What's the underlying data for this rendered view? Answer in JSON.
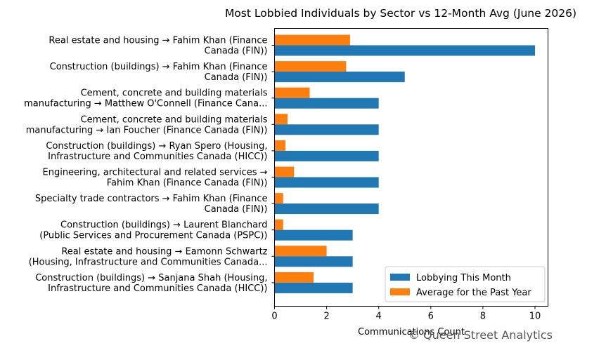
{
  "chart_data": {
    "type": "bar",
    "orientation": "horizontal",
    "title": "Most Lobbied Individuals by Sector vs 12-Month Avg (June 2026)",
    "xlabel": "Communications Count",
    "ylabel": "",
    "xlim": [
      0,
      10.5
    ],
    "xticks": [
      0,
      2,
      4,
      6,
      8,
      10
    ],
    "grid": false,
    "legend_position": "lower-right",
    "categories": [
      [
        "Real estate and housing → Fahim Khan (Finance",
        "Canada (FIN))"
      ],
      [
        "Construction (buildings) → Fahim Khan (Finance",
        "Canada (FIN))"
      ],
      [
        "Cement, concrete and building materials",
        "manufacturing → Matthew O'Connell (Finance Cana..."
      ],
      [
        "Cement, concrete and building materials",
        "manufacturing → Ian Foucher (Finance Canada (FIN))"
      ],
      [
        "Construction (buildings) → Ryan Spero (Housing,",
        "Infrastructure and Communities Canada (HICC))"
      ],
      [
        "Engineering, architectural and related services →",
        "Fahim Khan (Finance Canada (FIN))"
      ],
      [
        "Specialty trade contractors → Fahim Khan (Finance",
        "Canada (FIN))"
      ],
      [
        "Construction (buildings) → Laurent Blanchard",
        "(Public Services and Procurement Canada (PSPC))"
      ],
      [
        "Real estate and housing → Eamonn Schwartz",
        "(Housing, Infrastructure and Communities Canada..."
      ],
      [
        "Construction (buildings) → Sanjana Shah (Housing,",
        "Infrastructure and Communities Canada (HICC))"
      ]
    ],
    "series": [
      {
        "name": "Lobbying This Month",
        "color": "#1f77b4",
        "values": [
          10,
          5,
          4,
          4,
          4,
          4,
          4,
          3,
          3,
          3
        ]
      },
      {
        "name": "Average for the Past Year",
        "color": "#ff7f0e",
        "values": [
          2.9,
          2.75,
          1.35,
          0.5,
          0.42,
          0.75,
          0.33,
          0.33,
          2.0,
          1.5
        ]
      }
    ],
    "watermark": "© Queen Street Analytics"
  }
}
